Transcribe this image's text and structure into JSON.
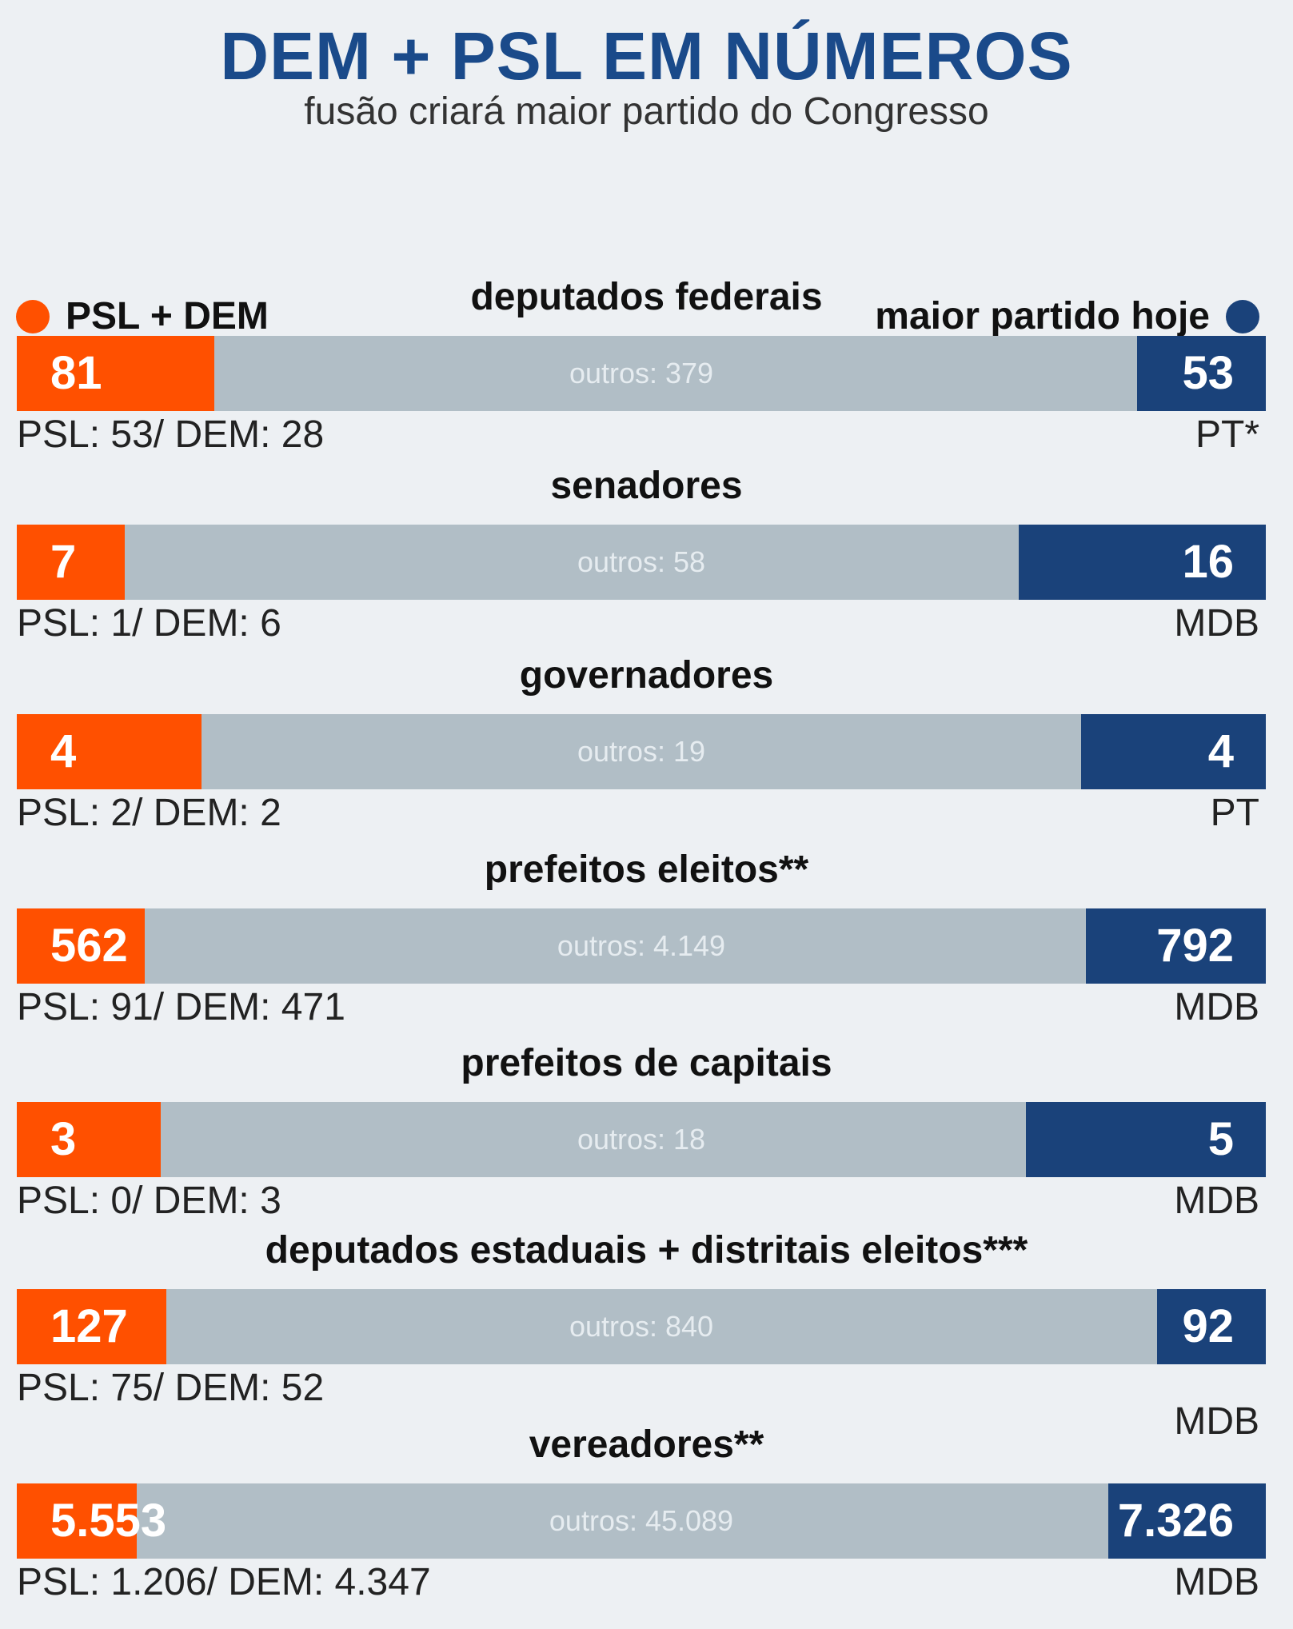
{
  "header": {
    "title": "DEM + PSL EM NÚMEROS",
    "subtitle": "fusão criará maior partido do Congresso"
  },
  "legend": {
    "left_label": "PSL + DEM",
    "right_label": "maior partido hoje",
    "left_color": "#ff5000",
    "right_color": "#1a427a",
    "others_color": "#b1bec6"
  },
  "chart_data": {
    "type": "bar",
    "stacked": true,
    "orientation": "horizontal",
    "categories": [
      "deputados federais",
      "senadores",
      "governadores",
      "prefeitos eleitos**",
      "prefeitos de capitais",
      "deputados estaduais + distritais eleitos***",
      "vereadores**"
    ],
    "series": [
      {
        "name": "PSL + DEM",
        "values": [
          81,
          7,
          4,
          562,
          3,
          127,
          5553
        ]
      },
      {
        "name": "outros",
        "values": [
          379,
          58,
          19,
          4149,
          18,
          840,
          45089
        ]
      },
      {
        "name": "maior partido hoje",
        "values": [
          53,
          16,
          4,
          792,
          5,
          92,
          7326
        ]
      }
    ],
    "rows": [
      {
        "title": "deputados federais",
        "left_label": "81",
        "others_label": "outros: 379",
        "right_label": "53",
        "left": 81,
        "others": 379,
        "right": 53,
        "breakdown": "PSL: 53/ DEM: 28",
        "right_party": "PT*"
      },
      {
        "title": "senadores",
        "left_label": "7",
        "others_label": "outros: 58",
        "right_label": "16",
        "left": 7,
        "others": 58,
        "right": 16,
        "breakdown": "PSL: 1/ DEM: 6",
        "right_party": "MDB"
      },
      {
        "title": "governadores",
        "left_label": "4",
        "others_label": "outros: 19",
        "right_label": "4",
        "left": 4,
        "others": 19,
        "right": 4,
        "breakdown": "PSL: 2/ DEM: 2",
        "right_party": "PT"
      },
      {
        "title": "prefeitos eleitos**",
        "left_label": "562",
        "others_label": "outros: 4.149",
        "right_label": "792",
        "left": 562,
        "others": 4149,
        "right": 792,
        "breakdown": "PSL: 91/ DEM: 471",
        "right_party": "MDB"
      },
      {
        "title": "prefeitos de capitais",
        "left_label": "3",
        "others_label": "outros: 18",
        "right_label": "5",
        "left": 3,
        "others": 18,
        "right": 5,
        "breakdown": "PSL: 0/ DEM: 3",
        "right_party": "MDB"
      },
      {
        "title": "deputados estaduais + distritais eleitos***",
        "left_label": "127",
        "others_label": "outros: 840",
        "right_label": "92",
        "left": 127,
        "others": 840,
        "right": 92,
        "breakdown": "PSL: 75/ DEM: 52",
        "right_party": "MDB"
      },
      {
        "title": "vereadores**",
        "left_label": "5.553",
        "others_label": "outros: 45.089",
        "right_label": "7.326",
        "left": 5553,
        "others": 45089,
        "right": 7326,
        "breakdown": "PSL: 1.206/ DEM: 4.347",
        "right_party": "MDB"
      }
    ]
  }
}
